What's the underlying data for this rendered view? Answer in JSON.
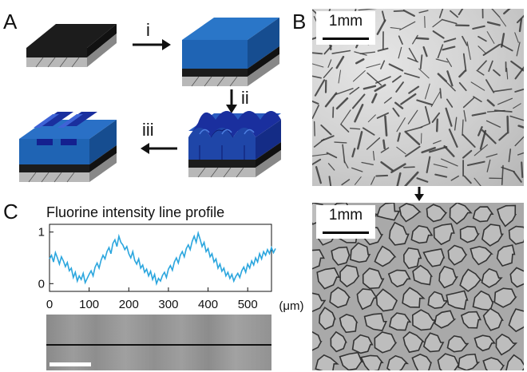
{
  "panels": {
    "a": {
      "letter": "A",
      "steps": [
        "i",
        "ii",
        "iii"
      ]
    },
    "b": {
      "letter": "B",
      "scalebar_top": "1mm",
      "scalebar_bottom": "1mm"
    },
    "c": {
      "letter": "C"
    }
  },
  "colors": {
    "substrate_black": "#1c1c1c",
    "coating_blue": "#1f64b4",
    "wrinkle_dark_blue": "#14208f",
    "profile_line": "#2ba6de"
  },
  "chart_data": {
    "type": "line",
    "title": "Fluorine intensity line profile",
    "xlabel": "",
    "ylabel": "",
    "unit": "(μm)",
    "xlim": [
      0,
      560
    ],
    "ylim": [
      -0.15,
      1.15
    ],
    "xticks": [
      "0",
      "100",
      "200",
      "300",
      "400",
      "500"
    ],
    "yticks": [
      "0",
      "1"
    ],
    "grid": false,
    "series": [
      {
        "x_step": 5,
        "values": [
          0.48,
          0.55,
          0.42,
          0.6,
          0.5,
          0.38,
          0.52,
          0.44,
          0.33,
          0.41,
          0.25,
          0.3,
          0.12,
          0.22,
          0.05,
          0.15,
          0.08,
          0.2,
          0.02,
          0.1,
          0.18,
          0.25,
          0.15,
          0.32,
          0.4,
          0.3,
          0.45,
          0.55,
          0.48,
          0.62,
          0.7,
          0.58,
          0.78,
          0.85,
          0.72,
          0.92,
          0.8,
          0.75,
          0.66,
          0.72,
          0.58,
          0.5,
          0.62,
          0.45,
          0.38,
          0.48,
          0.3,
          0.36,
          0.22,
          0.28,
          0.15,
          0.24,
          0.08,
          0.18,
          0.0,
          0.1,
          0.05,
          0.16,
          0.22,
          0.12,
          0.28,
          0.35,
          0.26,
          0.42,
          0.5,
          0.4,
          0.55,
          0.62,
          0.52,
          0.68,
          0.75,
          0.66,
          0.82,
          0.92,
          0.8,
          0.98,
          0.86,
          0.72,
          0.8,
          0.62,
          0.68,
          0.52,
          0.58,
          0.42,
          0.48,
          0.3,
          0.38,
          0.24,
          0.3,
          0.15,
          0.22,
          0.1,
          0.18,
          0.05,
          0.14,
          0.2,
          0.12,
          0.25,
          0.32,
          0.22,
          0.38,
          0.3,
          0.44,
          0.36,
          0.5,
          0.42,
          0.58,
          0.48,
          0.62,
          0.55,
          0.66,
          0.58,
          0.7,
          0.6,
          0.68
        ]
      }
    ]
  }
}
